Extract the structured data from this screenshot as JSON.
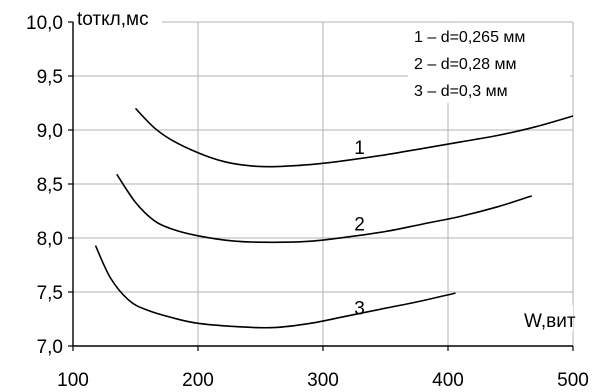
{
  "chart_data": {
    "type": "line",
    "xlabel": "W,вит",
    "ylabel": "tоткл,мс",
    "xlim": [
      100,
      500
    ],
    "ylim": [
      7.0,
      10.0
    ],
    "x_ticks": [
      100,
      200,
      300,
      400,
      500
    ],
    "y_ticks": [
      7.0,
      7.5,
      8.0,
      8.5,
      9.0,
      9.5,
      10.0
    ],
    "x_tick_labels": [
      "100",
      "200",
      "300",
      "400",
      "500"
    ],
    "y_tick_labels": [
      "7,0",
      "7,5",
      "8,0",
      "8,5",
      "9,0",
      "9,5",
      "10,0"
    ],
    "grid": true,
    "legend_position": "top-right",
    "legend": [
      "1 – d=0,265 мм",
      "2 – d=0,28 мм",
      "3 – d=0,3 мм"
    ],
    "series": [
      {
        "name": "1",
        "x": [
          150,
          165,
          180,
          200,
          220,
          240,
          260,
          290,
          320,
          350,
          380,
          410,
          440,
          470,
          500
        ],
        "y": [
          9.2,
          9.02,
          8.9,
          8.79,
          8.71,
          8.67,
          8.66,
          8.68,
          8.72,
          8.77,
          8.83,
          8.89,
          8.95,
          9.03,
          9.13
        ]
      },
      {
        "name": "2",
        "x": [
          135,
          150,
          165,
          180,
          200,
          230,
          260,
          290,
          320,
          350,
          380,
          410,
          440,
          467
        ],
        "y": [
          8.59,
          8.33,
          8.16,
          8.08,
          8.02,
          7.97,
          7.96,
          7.97,
          8.01,
          8.06,
          8.13,
          8.2,
          8.29,
          8.39
        ]
      },
      {
        "name": "3",
        "x": [
          118,
          130,
          145,
          160,
          180,
          200,
          230,
          260,
          290,
          320,
          350,
          380,
          406
        ],
        "y": [
          7.93,
          7.63,
          7.42,
          7.33,
          7.26,
          7.21,
          7.18,
          7.17,
          7.21,
          7.28,
          7.35,
          7.42,
          7.49
        ]
      }
    ],
    "curve_labels": [
      {
        "text": "1",
        "x": 325,
        "y": 8.78
      },
      {
        "text": "2",
        "x": 325,
        "y": 8.07
      },
      {
        "text": "3",
        "x": 325,
        "y": 7.29
      }
    ]
  }
}
